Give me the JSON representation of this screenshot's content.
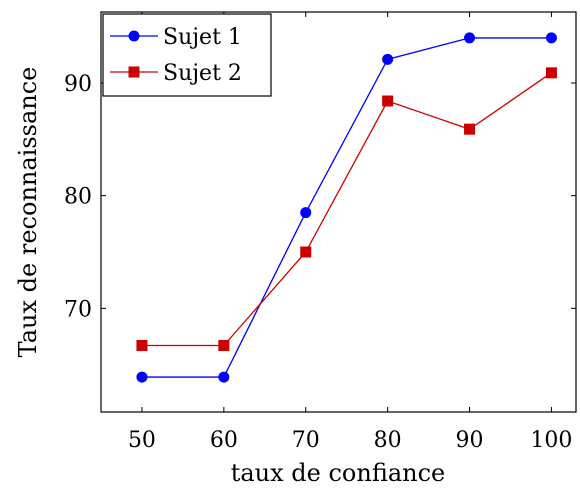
{
  "chart_data": {
    "type": "line",
    "title": "",
    "xlabel": "taux de confiance",
    "ylabel": "Taux de reconnaissance",
    "x": [
      50,
      60,
      70,
      80,
      90,
      100
    ],
    "xticks": [
      "50",
      "60",
      "70",
      "80",
      "90",
      "100"
    ],
    "yticks": [
      "70",
      "80",
      "90"
    ],
    "ytick_values": [
      70,
      80,
      90
    ],
    "xlim": [
      45,
      103
    ],
    "ylim": [
      60.8,
      96.3
    ],
    "grid": false,
    "legend_position": "top-left",
    "series": [
      {
        "name": "Sujet 1",
        "color": "#0000ff",
        "marker": "circle",
        "values": [
          63.9,
          63.9,
          78.5,
          92.1,
          94.0,
          94.0
        ]
      },
      {
        "name": "Sujet 2",
        "color": "#cc0000",
        "marker": "square",
        "values": [
          66.7,
          66.7,
          75.0,
          88.4,
          85.9,
          90.9
        ]
      }
    ]
  }
}
